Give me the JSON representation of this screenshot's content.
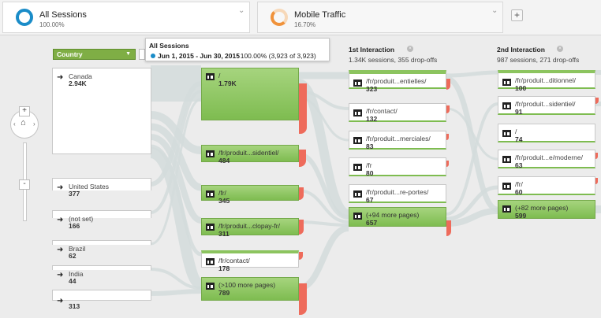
{
  "segments": [
    {
      "title": "All Sessions",
      "pct": "100.00%",
      "ring_color": "#1a8cc8"
    },
    {
      "title": "Mobile Traffic",
      "pct": "16.70%",
      "ring_color": "#f0923a"
    }
  ],
  "add_segment": "+",
  "dimension": {
    "label": "Country"
  },
  "tooltip": {
    "title": "All Sessions",
    "date_range": "Jun 1, 2015 - Jun 30, 2015",
    "stats": ": 100.00% (3,923 of 3,923)"
  },
  "zoom": {
    "plus": "+",
    "minus": "-",
    "home_icon": "home-icon"
  },
  "columns": [
    {
      "title": "1st Interaction",
      "subtitle": "1.34K sessions, 355 drop-offs",
      "close": "×"
    },
    {
      "title": "2nd Interaction",
      "subtitle": "987 sessions, 271 drop-offs",
      "close": "×"
    }
  ],
  "sources": [
    {
      "label": "Canada",
      "value": "2.94K"
    },
    {
      "label": "United States",
      "value": "377"
    },
    {
      "label": "(not set)",
      "value": "166"
    },
    {
      "label": "Brazil",
      "value": "62"
    },
    {
      "label": "India",
      "value": "44"
    },
    {
      "label": "",
      "value": "313"
    }
  ],
  "starting_pages": [
    {
      "label": "/",
      "value": "1.79K"
    },
    {
      "label": "/fr/produit...sidentiel/",
      "value": "484"
    },
    {
      "label": "/fr/",
      "value": "345"
    },
    {
      "label": "/fr/produit...clopay-fr/",
      "value": "311"
    },
    {
      "label": "/fr/contact/",
      "value": "178"
    },
    {
      "label": "(>100 more pages)",
      "value": "789"
    }
  ],
  "first_interaction": [
    {
      "label": "/fr/produit...entielles/",
      "value": "323"
    },
    {
      "label": "/fr/contact/",
      "value": "132"
    },
    {
      "label": "/fr/produit...merciales/",
      "value": "83"
    },
    {
      "label": "/fr",
      "value": "80"
    },
    {
      "label": "/fr/produit...re-portes/",
      "value": "67"
    },
    {
      "label": "(+94 more pages)",
      "value": "657"
    }
  ],
  "second_interaction": [
    {
      "label": "/fr/produit...ditionnel/",
      "value": "100"
    },
    {
      "label": "/fr/produit...sidentiel/",
      "value": "91"
    },
    {
      "label": "/",
      "value": "74"
    },
    {
      "label": "/fr/produit...e/moderne/",
      "value": "63"
    },
    {
      "label": "/fr/",
      "value": "60"
    },
    {
      "label": "(+82 more pages)",
      "value": "599"
    }
  ],
  "colors": {
    "node_green": "#8cc45f",
    "dropoff": "#ee6b5b",
    "flow": "#d3dcdc"
  }
}
